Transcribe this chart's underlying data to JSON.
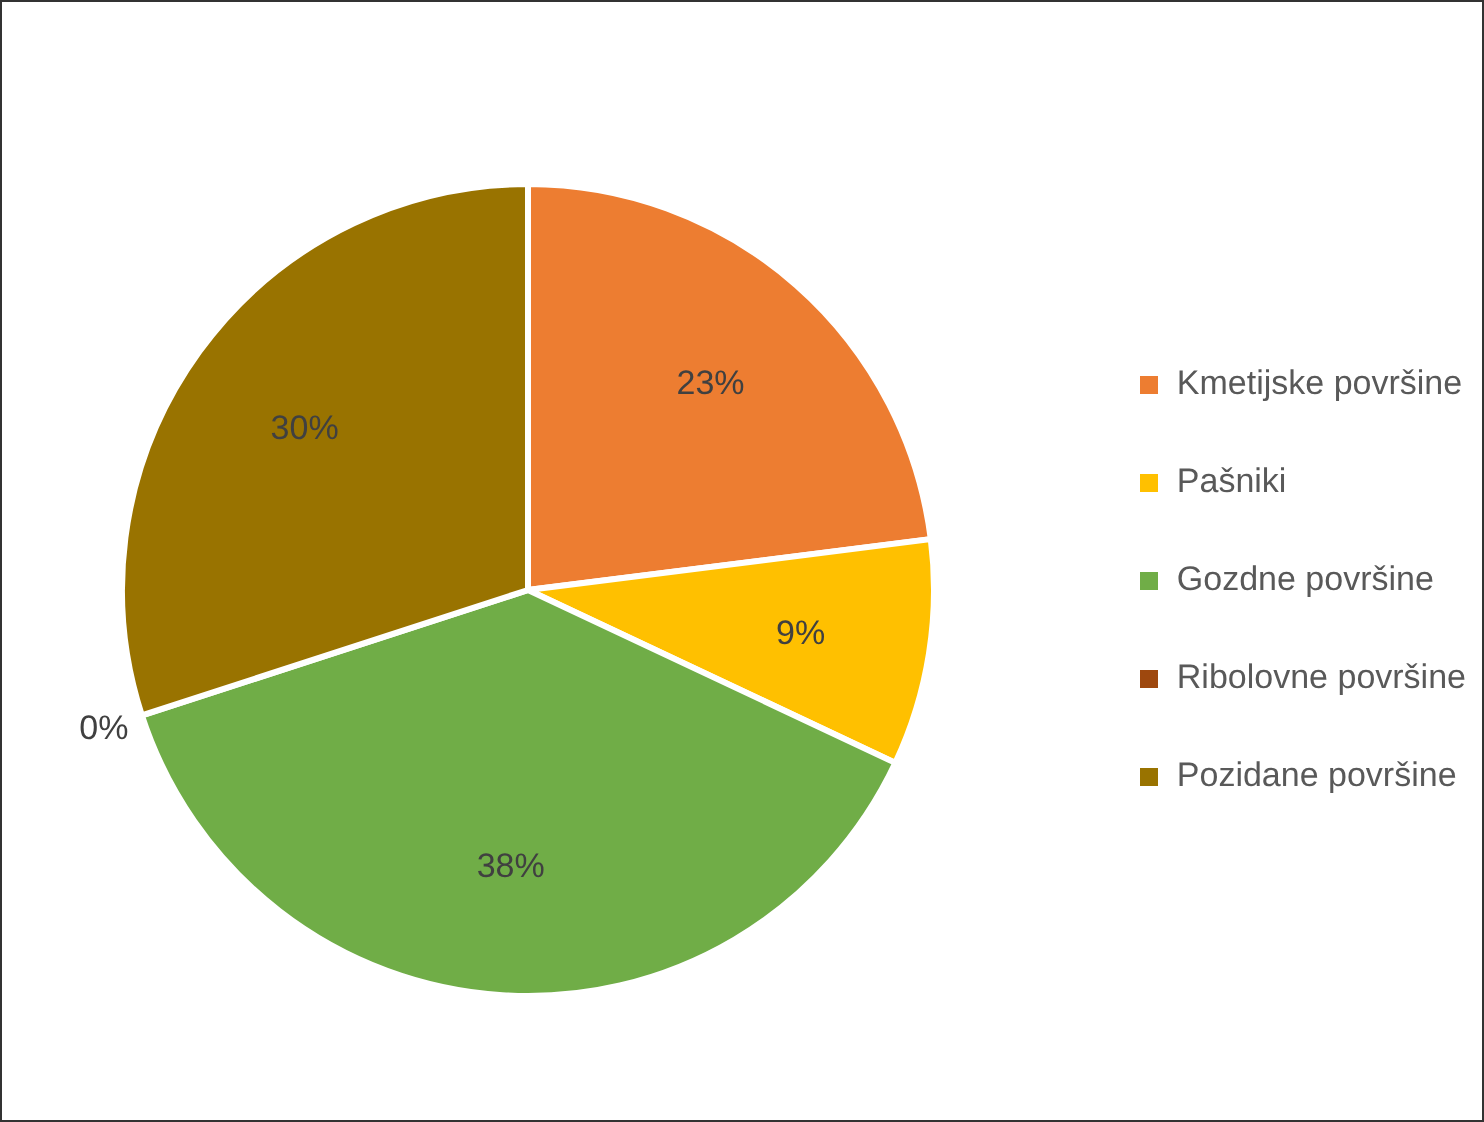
{
  "chart_data": {
    "type": "pie",
    "categories": [
      "Kmetijske površine",
      "Pašniki",
      "Gozdne površine",
      "Ribolovne površine",
      "Pozidane površine"
    ],
    "values": [
      23,
      9,
      38,
      0,
      30
    ],
    "value_labels": [
      "23%",
      "9%",
      "38%",
      "0%",
      "30%"
    ],
    "colors": [
      "#ed7d31",
      "#ffc000",
      "#70ad47",
      "#9e480e",
      "#997300"
    ],
    "legend": "right"
  }
}
